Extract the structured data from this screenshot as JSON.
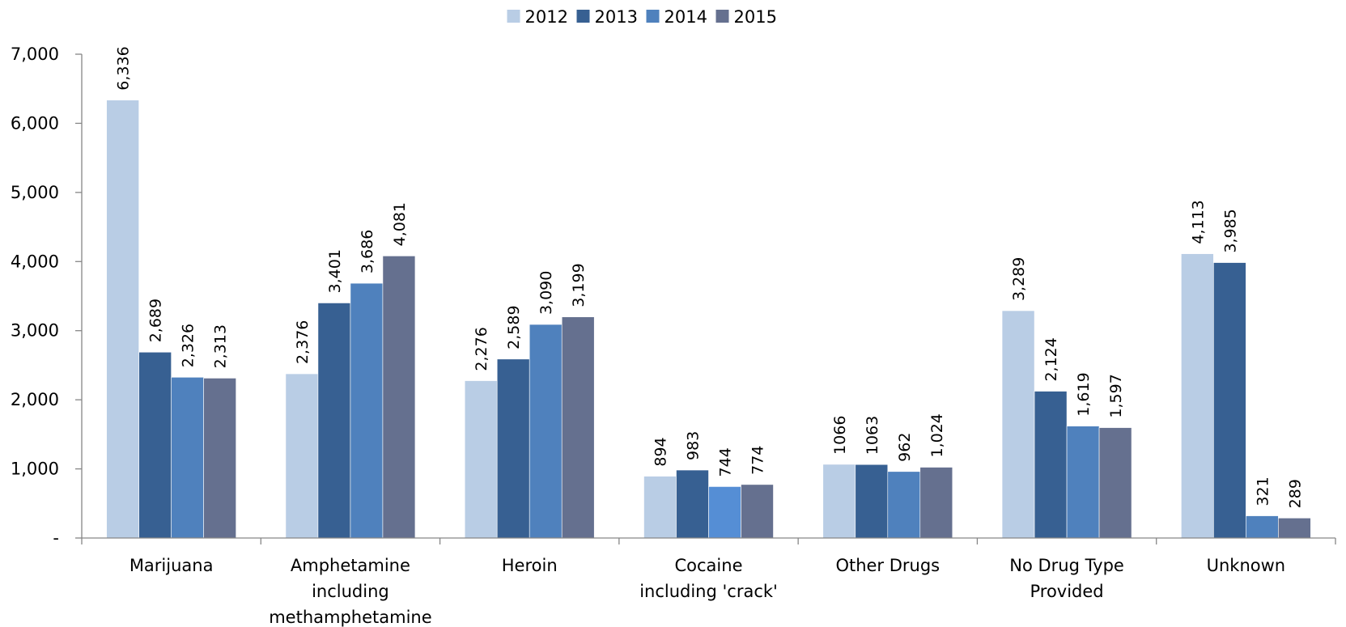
{
  "chart_data": {
    "type": "bar",
    "categories": [
      [
        "Marijuana"
      ],
      [
        "Amphetamine",
        "including",
        "methamphetamine"
      ],
      [
        "Heroin"
      ],
      [
        "Cocaine",
        "including 'crack'"
      ],
      [
        "Other Drugs"
      ],
      [
        "No Drug Type",
        "Provided"
      ],
      [
        "Unknown"
      ]
    ],
    "series": [
      {
        "name": "2012",
        "color": "#b9cde5",
        "values": [
          6336,
          2376,
          2276,
          894,
          1066,
          3289,
          4113
        ],
        "labels": [
          "6,336",
          "2,376",
          "2,276",
          "894",
          "1066",
          "3,289",
          "4,113"
        ]
      },
      {
        "name": "2013",
        "color": "#376092",
        "values": [
          2689,
          3401,
          2589,
          983,
          1063,
          2124,
          3985
        ],
        "labels": [
          "2,689",
          "3,401",
          "2,589",
          "983",
          "1063",
          "2,124",
          "3,985"
        ]
      },
      {
        "name": "2014",
        "color": "#4f81bd",
        "values": [
          2326,
          3686,
          3090,
          744,
          962,
          1619,
          321
        ],
        "labels": [
          "2,326",
          "3,686",
          "3,090",
          "744",
          "962",
          "1,619",
          "321"
        ]
      },
      {
        "name": "2015",
        "color": "#65708f",
        "values": [
          2313,
          4081,
          3199,
          774,
          1024,
          1597,
          289
        ],
        "labels": [
          "2,313",
          "4,081",
          "3,199",
          "774",
          "1,024",
          "1,597",
          "289"
        ]
      }
    ],
    "ylim": [
      0,
      7000
    ],
    "yticks": [
      0,
      1000,
      2000,
      3000,
      4000,
      5000,
      6000,
      7000
    ],
    "ytick_labels": [
      "-",
      "1,000",
      "2,000",
      "3,000",
      "4,000",
      "5,000",
      "6,000",
      "7,000"
    ],
    "highlight": {
      "series": 2,
      "category": 3,
      "color": "#558ed5"
    },
    "legend": "top-center",
    "grid": false
  }
}
